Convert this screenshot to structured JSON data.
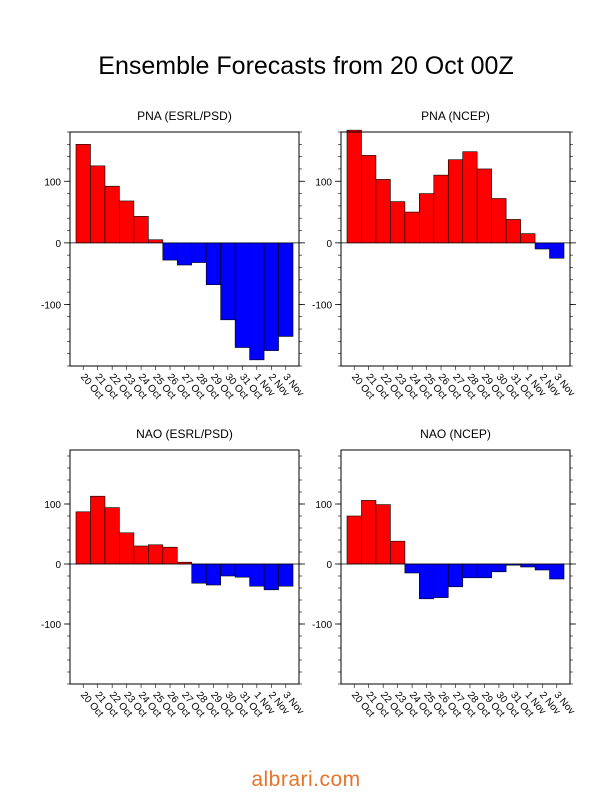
{
  "title": "Ensemble Forecasts from 20 Oct 00Z",
  "watermark": "albrari.com",
  "colors": {
    "positive": "#ff0000",
    "negative": "#0000ff",
    "axis": "#000000"
  },
  "chart_data": [
    {
      "type": "bar",
      "title": "PNA (ESRL/PSD)",
      "categories": [
        "20 Oct",
        "21 Oct",
        "22 Oct",
        "23 Oct",
        "24 Oct",
        "25 Oct",
        "26 Oct",
        "27 Oct",
        "28 Oct",
        "29 Oct",
        "30 Oct",
        "31 Oct",
        "1 Nov",
        "2 Nov",
        "3 Nov"
      ],
      "values": [
        160,
        125,
        92,
        68,
        43,
        5,
        -28,
        -36,
        -32,
        -68,
        -125,
        -170,
        -190,
        -175,
        -152
      ],
      "ylim": [
        -200,
        180
      ],
      "yticks": [
        -100,
        0,
        100
      ],
      "grid": false
    },
    {
      "type": "bar",
      "title": "PNA (NCEP)",
      "categories": [
        "20 Oct",
        "21 Oct",
        "22 Oct",
        "23 Oct",
        "24 Oct",
        "25 Oct",
        "26 Oct",
        "27 Oct",
        "28 Oct",
        "29 Oct",
        "30 Oct",
        "31 Oct",
        "1 Nov",
        "2 Nov",
        "3 Nov"
      ],
      "values": [
        183,
        142,
        103,
        67,
        50,
        80,
        110,
        135,
        148,
        120,
        72,
        38,
        15,
        -10,
        -25
      ],
      "ylim": [
        -200,
        180
      ],
      "yticks": [
        -100,
        0,
        100
      ],
      "grid": false
    },
    {
      "type": "bar",
      "title": "NAO (ESRL/PSD)",
      "categories": [
        "20 Oct",
        "21 Oct",
        "22 Oct",
        "23 Oct",
        "24 Oct",
        "25 Oct",
        "26 Oct",
        "27 Oct",
        "28 Oct",
        "29 Oct",
        "30 Oct",
        "31 Oct",
        "1 Nov",
        "2 Nov",
        "3 Nov"
      ],
      "values": [
        87,
        113,
        94,
        52,
        30,
        32,
        28,
        3,
        -32,
        -35,
        -20,
        -22,
        -37,
        -43,
        -37
      ],
      "ylim": [
        -200,
        190
      ],
      "yticks": [
        -100,
        0,
        100
      ],
      "grid": false
    },
    {
      "type": "bar",
      "title": "NAO (NCEP)",
      "categories": [
        "20 Oct",
        "21 Oct",
        "22 Oct",
        "23 Oct",
        "24 Oct",
        "25 Oct",
        "26 Oct",
        "27 Oct",
        "28 Oct",
        "29 Oct",
        "30 Oct",
        "31 Oct",
        "1 Nov",
        "2 Nov",
        "3 Nov"
      ],
      "values": [
        80,
        106,
        99,
        38,
        -15,
        -58,
        -56,
        -38,
        -23,
        -23,
        -13,
        -2,
        -5,
        -10,
        -25
      ],
      "ylim": [
        -200,
        190
      ],
      "yticks": [
        -100,
        0,
        100
      ],
      "grid": false
    }
  ]
}
